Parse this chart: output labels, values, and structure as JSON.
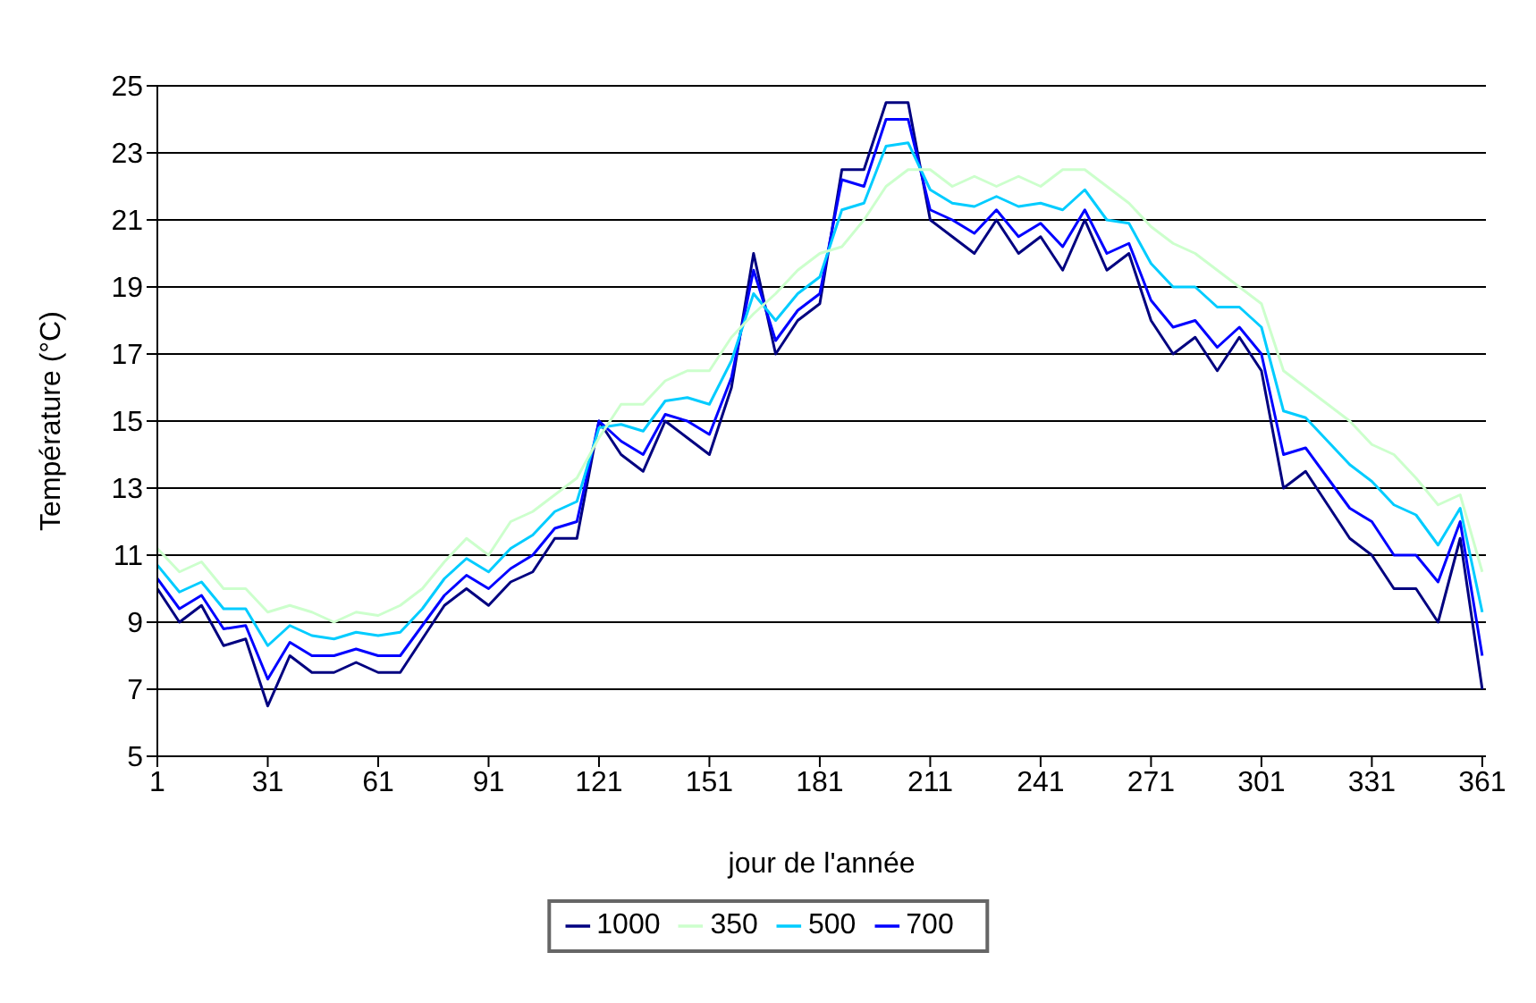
{
  "chart_data": {
    "type": "line",
    "xlabel": "jour de l'année",
    "ylabel": "Température (°C)",
    "x": [
      1,
      7,
      13,
      19,
      25,
      31,
      37,
      43,
      49,
      55,
      61,
      67,
      73,
      79,
      85,
      91,
      97,
      103,
      109,
      115,
      121,
      127,
      133,
      139,
      145,
      151,
      157,
      163,
      169,
      175,
      181,
      187,
      193,
      199,
      205,
      211,
      217,
      223,
      229,
      235,
      241,
      247,
      253,
      259,
      265,
      271,
      277,
      283,
      289,
      295,
      301,
      307,
      313,
      319,
      325,
      331,
      337,
      343,
      349,
      355,
      361
    ],
    "series": [
      {
        "name": "1000",
        "color": "#000080",
        "values": [
          10,
          9,
          9.5,
          8.3,
          8.5,
          6.5,
          8,
          7.5,
          7.5,
          7.8,
          7.5,
          7.5,
          8.5,
          9.5,
          10,
          9.5,
          10.2,
          10.5,
          11.5,
          11.5,
          15,
          14,
          13.5,
          15,
          14.5,
          14,
          16,
          20,
          17,
          18,
          18.5,
          22.5,
          22.5,
          24.5,
          24.5,
          21,
          20.5,
          20,
          21,
          20,
          20.5,
          19.5,
          21,
          19.5,
          20,
          18,
          17,
          17.5,
          16.5,
          17.5,
          16.5,
          13,
          13.5,
          12.5,
          11.5,
          11,
          10,
          10,
          9,
          11.5,
          7
        ]
      },
      {
        "name": "700",
        "color": "#0000ff",
        "values": [
          10.3,
          9.4,
          9.8,
          8.8,
          8.9,
          7.3,
          8.4,
          8,
          8,
          8.2,
          8,
          8,
          8.9,
          9.8,
          10.4,
          10,
          10.6,
          11,
          11.8,
          12,
          15,
          14.4,
          14,
          15.2,
          15,
          14.6,
          16.3,
          19.5,
          17.4,
          18.3,
          18.8,
          22.2,
          22,
          24,
          24,
          21.3,
          21,
          20.6,
          21.3,
          20.5,
          20.9,
          20.2,
          21.3,
          20,
          20.3,
          18.6,
          17.8,
          18,
          17.2,
          17.8,
          17,
          14,
          14.2,
          13.3,
          12.4,
          12,
          11,
          11,
          10.2,
          12,
          8
        ]
      },
      {
        "name": "500",
        "color": "#00ccff",
        "values": [
          10.7,
          9.9,
          10.2,
          9.4,
          9.4,
          8.3,
          8.9,
          8.6,
          8.5,
          8.7,
          8.6,
          8.7,
          9.4,
          10.3,
          10.9,
          10.5,
          11.2,
          11.6,
          12.3,
          12.6,
          14.8,
          14.9,
          14.7,
          15.6,
          15.7,
          15.5,
          16.8,
          18.8,
          18,
          18.8,
          19.3,
          21.3,
          21.5,
          23.2,
          23.3,
          21.9,
          21.5,
          21.4,
          21.7,
          21.4,
          21.5,
          21.3,
          21.9,
          21,
          20.9,
          19.7,
          19,
          19,
          18.4,
          18.4,
          17.8,
          15.3,
          15.1,
          14.4,
          13.7,
          13.2,
          12.5,
          12.2,
          11.3,
          12.4,
          9.3
        ]
      },
      {
        "name": "350",
        "color": "#ccffcc",
        "values": [
          11.2,
          10.5,
          10.8,
          10,
          10,
          9.3,
          9.5,
          9.3,
          9,
          9.3,
          9.2,
          9.5,
          10,
          10.8,
          11.5,
          11,
          12,
          12.3,
          12.8,
          13.3,
          14.5,
          15.5,
          15.5,
          16.2,
          16.5,
          16.5,
          17.5,
          18.2,
          18.8,
          19.5,
          20,
          20.2,
          21,
          22,
          22.5,
          22.5,
          22,
          22.3,
          22,
          22.3,
          22,
          22.5,
          22.5,
          22,
          21.5,
          20.8,
          20.3,
          20,
          19.5,
          19,
          18.5,
          16.5,
          16,
          15.5,
          15,
          14.3,
          14,
          13.3,
          12.5,
          12.8,
          10.5
        ]
      }
    ],
    "xlim": [
      1,
      362
    ],
    "xticks": [
      1,
      31,
      61,
      91,
      121,
      151,
      181,
      211,
      241,
      271,
      301,
      331,
      361
    ],
    "ylim": [
      5,
      25
    ],
    "yticks": [
      5,
      7,
      9,
      11,
      13,
      15,
      17,
      19,
      21,
      23,
      25
    ],
    "grid": "y",
    "legend": "bottom",
    "marker": "none",
    "line_style": "solid"
  }
}
